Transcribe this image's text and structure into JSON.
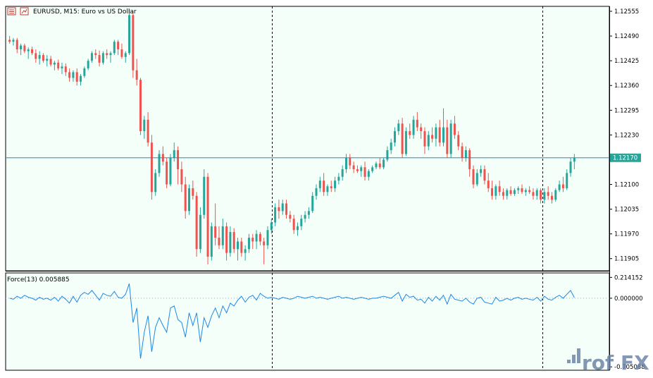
{
  "header": {
    "title": "EURUSD, M15:  Euro vs US Dollar"
  },
  "indicator": {
    "title": "Force(13) 0.005885"
  },
  "watermark": {
    "text": "rof FX"
  },
  "colors": {
    "background": "#f3fff8",
    "bull": "#26a69a",
    "bear": "#ef5350",
    "level_line": "#2e86c1",
    "force_line": "#1e88e5",
    "separator": "#000000",
    "watermark": "#6f86a8"
  },
  "chart_data": [
    {
      "type": "candlestick",
      "name": "EURUSD, M15",
      "price_axis": {
        "ticks": [
          "1.12555",
          "1.12490",
          "1.12425",
          "1.12360",
          "1.12295",
          "1.12230",
          "1.12100",
          "1.12035",
          "1.11970",
          "1.11905"
        ],
        "ylim": [
          1.11873,
          1.12568
        ]
      },
      "current_price": "1.12170",
      "candles": [
        [
          1.1248,
          1.1249,
          1.1247,
          1.12475
        ],
        [
          1.12475,
          1.12485,
          1.12465,
          1.1248
        ],
        [
          1.1248,
          1.12485,
          1.12445,
          1.12455
        ],
        [
          1.12455,
          1.1247,
          1.1244,
          1.12465
        ],
        [
          1.12465,
          1.1247,
          1.12445,
          1.1245
        ],
        [
          1.1245,
          1.1246,
          1.1243,
          1.12455
        ],
        [
          1.12455,
          1.12462,
          1.1244,
          1.12445
        ],
        [
          1.12445,
          1.12455,
          1.1242,
          1.1243
        ],
        [
          1.1243,
          1.1245,
          1.12415,
          1.1244
        ],
        [
          1.1244,
          1.12445,
          1.1242,
          1.12425
        ],
        [
          1.12425,
          1.1244,
          1.1241,
          1.1243
        ],
        [
          1.1243,
          1.12438,
          1.1241,
          1.12415
        ],
        [
          1.12415,
          1.12425,
          1.124,
          1.1242
        ],
        [
          1.1242,
          1.12428,
          1.124,
          1.12405
        ],
        [
          1.12405,
          1.1242,
          1.1239,
          1.1241
        ],
        [
          1.1241,
          1.12418,
          1.12385,
          1.12395
        ],
        [
          1.12395,
          1.12405,
          1.1237,
          1.1238
        ],
        [
          1.1238,
          1.124,
          1.1237,
          1.12395
        ],
        [
          1.12395,
          1.12405,
          1.1236,
          1.1237
        ],
        [
          1.1237,
          1.1239,
          1.1236,
          1.12385
        ],
        [
          1.12385,
          1.1241,
          1.1238,
          1.12405
        ],
        [
          1.12405,
          1.1243,
          1.124,
          1.12425
        ],
        [
          1.12425,
          1.1245,
          1.1242,
          1.12445
        ],
        [
          1.12445,
          1.12455,
          1.1243,
          1.1244
        ],
        [
          1.1244,
          1.12452,
          1.1241,
          1.1242
        ],
        [
          1.1242,
          1.1245,
          1.12415,
          1.12445
        ],
        [
          1.12445,
          1.12455,
          1.1243,
          1.1244
        ],
        [
          1.1244,
          1.1245,
          1.1242,
          1.12445
        ],
        [
          1.12445,
          1.1248,
          1.1244,
          1.12475
        ],
        [
          1.12475,
          1.1248,
          1.1244,
          1.12455
        ],
        [
          1.12455,
          1.1247,
          1.1243,
          1.12435
        ],
        [
          1.12435,
          1.1245,
          1.1242,
          1.12445
        ],
        [
          1.12445,
          1.1256,
          1.1244,
          1.12545
        ],
        [
          1.12545,
          1.12555,
          1.1238,
          1.124
        ],
        [
          1.124,
          1.1243,
          1.1236,
          1.12375
        ],
        [
          1.12375,
          1.1238,
          1.1223,
          1.1224
        ],
        [
          1.1224,
          1.1228,
          1.1222,
          1.1227
        ],
        [
          1.1227,
          1.1229,
          1.122,
          1.1221
        ],
        [
          1.1221,
          1.1223,
          1.1206,
          1.1208
        ],
        [
          1.1208,
          1.1214,
          1.1207,
          1.1213
        ],
        [
          1.1213,
          1.1219,
          1.1212,
          1.1218
        ],
        [
          1.1218,
          1.122,
          1.1215,
          1.1216
        ],
        [
          1.1216,
          1.1217,
          1.1209,
          1.121
        ],
        [
          1.121,
          1.1218,
          1.12095,
          1.1217
        ],
        [
          1.1217,
          1.1221,
          1.1216,
          1.1219
        ],
        [
          1.1219,
          1.122,
          1.121,
          1.1214
        ],
        [
          1.1214,
          1.1216,
          1.1208,
          1.121
        ],
        [
          1.121,
          1.1212,
          1.1201,
          1.1203
        ],
        [
          1.1203,
          1.121,
          1.1202,
          1.1209
        ],
        [
          1.1209,
          1.1211,
          1.1206,
          1.1207
        ],
        [
          1.1207,
          1.1208,
          1.1191,
          1.1193
        ],
        [
          1.1193,
          1.1204,
          1.1192,
          1.1202
        ],
        [
          1.1202,
          1.1214,
          1.1201,
          1.1212
        ],
        [
          1.1212,
          1.1213,
          1.1189,
          1.1191
        ],
        [
          1.1191,
          1.12,
          1.119,
          1.1199
        ],
        [
          1.1199,
          1.1205,
          1.1194,
          1.1196
        ],
        [
          1.1196,
          1.1199,
          1.1193,
          1.1194
        ],
        [
          1.1194,
          1.1201,
          1.1193,
          1.1199
        ],
        [
          1.1199,
          1.12,
          1.119,
          1.1192
        ],
        [
          1.1192,
          1.1199,
          1.1191,
          1.11975
        ],
        [
          1.11975,
          1.11985,
          1.1192,
          1.1193
        ],
        [
          1.1193,
          1.1196,
          1.119,
          1.1195
        ],
        [
          1.1195,
          1.1196,
          1.1191,
          1.1192
        ],
        [
          1.1192,
          1.1194,
          1.119,
          1.1193
        ],
        [
          1.1193,
          1.1197,
          1.1192,
          1.1196
        ],
        [
          1.1196,
          1.1197,
          1.1193,
          1.1195
        ],
        [
          1.1195,
          1.1198,
          1.1193,
          1.1197
        ],
        [
          1.1197,
          1.11975,
          1.1194,
          1.1195
        ],
        [
          1.1195,
          1.1196,
          1.1189,
          1.1194
        ],
        [
          1.1194,
          1.1199,
          1.1193,
          1.1198
        ],
        [
          1.1198,
          1.1201,
          1.1197,
          1.12
        ],
        [
          1.12,
          1.1205,
          1.1199,
          1.1204
        ],
        [
          1.1204,
          1.1206,
          1.1201,
          1.1203
        ],
        [
          1.1203,
          1.1206,
          1.1202,
          1.1205
        ],
        [
          1.1205,
          1.1206,
          1.1201,
          1.1202
        ],
        [
          1.1202,
          1.1203,
          1.12,
          1.1201
        ],
        [
          1.1201,
          1.1202,
          1.1197,
          1.1198
        ],
        [
          1.1198,
          1.12,
          1.11965,
          1.1199
        ],
        [
          1.1199,
          1.1202,
          1.1198,
          1.1201
        ],
        [
          1.1201,
          1.1203,
          1.12,
          1.1202
        ],
        [
          1.1202,
          1.1204,
          1.1201,
          1.1203
        ],
        [
          1.1203,
          1.1208,
          1.12025,
          1.1207
        ],
        [
          1.1207,
          1.121,
          1.1206,
          1.1209
        ],
        [
          1.1209,
          1.1212,
          1.1208,
          1.1211
        ],
        [
          1.1211,
          1.1213,
          1.1207,
          1.1208
        ],
        [
          1.1208,
          1.121,
          1.1207,
          1.12095
        ],
        [
          1.12095,
          1.1211,
          1.1208,
          1.1209
        ],
        [
          1.1209,
          1.1212,
          1.1208,
          1.1211
        ],
        [
          1.1211,
          1.1213,
          1.121,
          1.1212
        ],
        [
          1.1212,
          1.1215,
          1.1211,
          1.1214
        ],
        [
          1.1214,
          1.1218,
          1.1213,
          1.1217
        ],
        [
          1.1217,
          1.1218,
          1.1214,
          1.1215
        ],
        [
          1.1215,
          1.1216,
          1.1213,
          1.1214
        ],
        [
          1.1214,
          1.1215,
          1.1213,
          1.12135
        ],
        [
          1.12135,
          1.1215,
          1.1212,
          1.12145
        ],
        [
          1.12145,
          1.1216,
          1.1211,
          1.1212
        ],
        [
          1.1212,
          1.1214,
          1.1211,
          1.12135
        ],
        [
          1.12135,
          1.1215,
          1.1213,
          1.12145
        ],
        [
          1.12145,
          1.1216,
          1.1214,
          1.12155
        ],
        [
          1.12155,
          1.1217,
          1.1214,
          1.12145
        ],
        [
          1.12145,
          1.1217,
          1.1214,
          1.12165
        ],
        [
          1.12165,
          1.122,
          1.1216,
          1.1219
        ],
        [
          1.1219,
          1.1222,
          1.1218,
          1.1221
        ],
        [
          1.1221,
          1.1225,
          1.122,
          1.1224
        ],
        [
          1.1224,
          1.1227,
          1.1223,
          1.1226
        ],
        [
          1.1226,
          1.12275,
          1.1217,
          1.1218
        ],
        [
          1.1218,
          1.1225,
          1.12175,
          1.1224
        ],
        [
          1.1224,
          1.1226,
          1.1222,
          1.1223
        ],
        [
          1.1223,
          1.1228,
          1.1222,
          1.1227
        ],
        [
          1.1227,
          1.1229,
          1.1224,
          1.1225
        ],
        [
          1.1225,
          1.1226,
          1.1222,
          1.1224
        ],
        [
          1.1224,
          1.1225,
          1.1218,
          1.122
        ],
        [
          1.122,
          1.1224,
          1.1219,
          1.1223
        ],
        [
          1.1223,
          1.1225,
          1.1221,
          1.1222
        ],
        [
          1.1222,
          1.1226,
          1.122,
          1.1225
        ],
        [
          1.1225,
          1.1227,
          1.122,
          1.1221
        ],
        [
          1.1221,
          1.123,
          1.122,
          1.1225
        ],
        [
          1.1225,
          1.1227,
          1.1217,
          1.1218
        ],
        [
          1.1218,
          1.1227,
          1.1217,
          1.1226
        ],
        [
          1.1226,
          1.1228,
          1.1222,
          1.1223
        ],
        [
          1.1223,
          1.1224,
          1.1219,
          1.122
        ],
        [
          1.122,
          1.1221,
          1.1216,
          1.1217
        ],
        [
          1.1217,
          1.122,
          1.1216,
          1.1219
        ],
        [
          1.1219,
          1.12195,
          1.1212,
          1.1214
        ],
        [
          1.1214,
          1.1215,
          1.1209,
          1.121
        ],
        [
          1.121,
          1.1214,
          1.12095,
          1.1213
        ],
        [
          1.1213,
          1.1215,
          1.1212,
          1.1214
        ],
        [
          1.1214,
          1.1215,
          1.121,
          1.1211
        ],
        [
          1.1211,
          1.1213,
          1.1208,
          1.1209
        ],
        [
          1.1209,
          1.1211,
          1.1206,
          1.1207
        ],
        [
          1.1207,
          1.121,
          1.1206,
          1.12095
        ],
        [
          1.12095,
          1.1211,
          1.1207,
          1.1208
        ],
        [
          1.1208,
          1.1209,
          1.1206,
          1.1207
        ],
        [
          1.1207,
          1.1209,
          1.1206,
          1.12085
        ],
        [
          1.12085,
          1.12095,
          1.1207,
          1.12075
        ],
        [
          1.12075,
          1.1209,
          1.1207,
          1.12085
        ],
        [
          1.12085,
          1.12095,
          1.12075,
          1.1209
        ],
        [
          1.1209,
          1.121,
          1.12075,
          1.1208
        ],
        [
          1.1208,
          1.1209,
          1.1207,
          1.12085
        ],
        [
          1.12085,
          1.12095,
          1.12075,
          1.1208
        ],
        [
          1.1208,
          1.1209,
          1.1206,
          1.1207
        ],
        [
          1.1207,
          1.1209,
          1.1206,
          1.12085
        ],
        [
          1.12085,
          1.1209,
          1.1205,
          1.1206
        ],
        [
          1.1206,
          1.1209,
          1.1205,
          1.1208
        ],
        [
          1.1208,
          1.12095,
          1.1206,
          1.1207
        ],
        [
          1.1207,
          1.1208,
          1.1205,
          1.1206
        ],
        [
          1.1206,
          1.1209,
          1.12055,
          1.12085
        ],
        [
          1.12085,
          1.1211,
          1.1208,
          1.121
        ],
        [
          1.121,
          1.1212,
          1.1208,
          1.1209
        ],
        [
          1.1209,
          1.1214,
          1.12085,
          1.1213
        ],
        [
          1.1213,
          1.1217,
          1.1212,
          1.1216
        ],
        [
          1.1216,
          1.1218,
          1.1214,
          1.1217
        ]
      ]
    },
    {
      "type": "line",
      "name": "Force(13)",
      "value_label": "0.005885",
      "y_axis": {
        "ticks": [
          "0.214152",
          "0.000000",
          "-0.705088"
        ],
        "ylim": [
          -0.74,
          0.26
        ]
      },
      "zero_line": "0.000000",
      "values": [
        0.0,
        -0.01,
        0.02,
        0.0,
        0.03,
        0.01,
        0.0,
        -0.02,
        0.01,
        -0.01,
        0.0,
        -0.02,
        0.01,
        -0.03,
        0.02,
        -0.01,
        -0.05,
        0.02,
        -0.04,
        0.03,
        0.06,
        0.04,
        0.08,
        0.03,
        -0.02,
        0.05,
        0.03,
        0.02,
        0.07,
        0.01,
        0.0,
        0.04,
        0.15,
        -0.25,
        -0.1,
        -0.62,
        -0.35,
        -0.18,
        -0.55,
        -0.3,
        -0.2,
        -0.28,
        -0.35,
        -0.1,
        -0.08,
        -0.22,
        -0.25,
        -0.4,
        -0.15,
        -0.28,
        -0.15,
        -0.45,
        -0.2,
        -0.3,
        -0.18,
        -0.1,
        -0.2,
        -0.08,
        -0.15,
        -0.05,
        -0.08,
        -0.02,
        0.02,
        -0.04,
        0.01,
        0.03,
        -0.02,
        0.05,
        0.02,
        0.0,
        0.01,
        0.0,
        -0.01,
        0.01,
        0.0,
        -0.01,
        0.0,
        0.02,
        0.01,
        0.0,
        0.01,
        0.02,
        0.0,
        0.01,
        0.0,
        -0.01,
        0.0,
        0.01,
        0.02,
        0.0,
        0.01,
        0.0,
        -0.01,
        0.0,
        0.01,
        0.0,
        -0.01,
        0.0,
        0.0,
        0.01,
        0.02,
        0.01,
        0.0,
        0.03,
        0.06,
        -0.03,
        0.04,
        0.01,
        0.02,
        -0.02,
        -0.01,
        -0.05,
        0.01,
        -0.03,
        0.02,
        -0.02,
        0.03,
        -0.06,
        0.04,
        -0.01,
        -0.02,
        -0.03,
        0.0,
        -0.04,
        -0.06,
        0.0,
        0.01,
        -0.04,
        -0.05,
        -0.06,
        0.01,
        -0.03,
        -0.02,
        0.0,
        -0.02,
        0.0,
        0.01,
        -0.01,
        0.0,
        -0.01,
        -0.02,
        0.01,
        -0.03,
        0.02,
        -0.01,
        -0.02,
        0.01,
        0.03,
        0.0,
        0.04,
        0.08,
        0.006
      ]
    }
  ]
}
